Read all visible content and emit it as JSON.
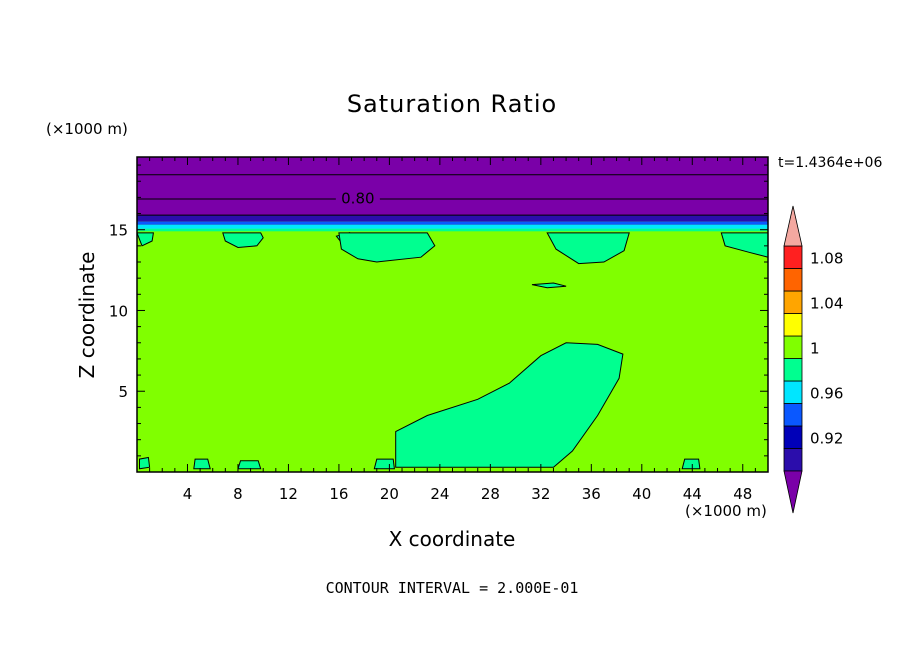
{
  "chart_data": {
    "type": "heatmap",
    "title": "Saturation Ratio",
    "xlabel": "X coordinate",
    "ylabel": "Z coordinate",
    "x_unit": "(×1000 m)",
    "y_unit": "(×1000 m)",
    "time_label": "t=1.4364e+06",
    "footer": "CONTOUR INTERVAL = 2.000E-01",
    "xlim": [
      0,
      50
    ],
    "ylim": [
      0,
      19.5
    ],
    "x_ticks": [
      4,
      8,
      12,
      16,
      20,
      24,
      28,
      32,
      36,
      40,
      44,
      48
    ],
    "y_ticks": [
      5,
      10,
      15
    ],
    "contour_labels": [
      {
        "text": "0.80",
        "x": 17.5,
        "z": 17.0
      }
    ],
    "colorbar": {
      "levels": [
        0.9,
        0.92,
        0.94,
        0.96,
        0.98,
        1.0,
        1.02,
        1.04,
        1.06,
        1.08,
        1.1
      ],
      "tick_labels": [
        "0.92",
        "0.96",
        "1",
        "1.04",
        "1.08"
      ],
      "tick_values": [
        0.92,
        0.96,
        1.0,
        1.04,
        1.08
      ],
      "colors": [
        "#7a00a8",
        "#2b0dab",
        "#0000b8",
        "#0a58ff",
        "#00e6ff",
        "#00ff90",
        "#80ff00",
        "#ffff00",
        "#ffa500",
        "#ff6400",
        "#ff2020"
      ],
      "under_color": "#7a00a8",
      "over_color": "#f4a8a0"
    },
    "field": {
      "background": "#80ff00",
      "bands": [
        {
          "z0": 15.9,
          "z1": 19.5,
          "color": "#7a00a8"
        },
        {
          "z0": 15.5,
          "z1": 15.9,
          "color": "#2b0dab"
        },
        {
          "z0": 15.3,
          "z1": 15.5,
          "color": "#0a58ff"
        },
        {
          "z0": 15.05,
          "z1": 15.3,
          "color": "#00e6ff"
        },
        {
          "z0": 14.9,
          "z1": 15.05,
          "color": "#00ff90"
        }
      ],
      "contour_lines_z": [
        16.9,
        18.4
      ],
      "regions": [
        {
          "color": "#00ff90",
          "points": [
            [
              20.5,
              0.3
            ],
            [
              20.5,
              2.5
            ],
            [
              23,
              3.5
            ],
            [
              27,
              4.5
            ],
            [
              29.5,
              5.5
            ],
            [
              32,
              7.2
            ],
            [
              34,
              8.0
            ],
            [
              36.5,
              7.9
            ],
            [
              38.5,
              7.3
            ],
            [
              38.2,
              5.8
            ],
            [
              36.5,
              3.5
            ],
            [
              34.5,
              1.3
            ],
            [
              33,
              0.3
            ]
          ]
        },
        {
          "color": "#00ff90",
          "points": [
            [
              6.8,
              14.8
            ],
            [
              7.0,
              14.3
            ],
            [
              8.0,
              13.9
            ],
            [
              9.5,
              14.0
            ],
            [
              10.0,
              14.5
            ],
            [
              9.8,
              14.8
            ]
          ]
        },
        {
          "color": "#00ff90",
          "points": [
            [
              15.8,
              14.6
            ],
            [
              16.2,
              14.2
            ],
            [
              16.5,
              14.5
            ],
            [
              16.8,
              14.8
            ]
          ]
        },
        {
          "color": "#00ff90",
          "points": [
            [
              16.0,
              14.8
            ],
            [
              16.2,
              13.8
            ],
            [
              17.5,
              13.2
            ],
            [
              19.0,
              13.0
            ],
            [
              22.5,
              13.3
            ],
            [
              23.6,
              14.0
            ],
            [
              23.0,
              14.8
            ]
          ]
        },
        {
          "color": "#00ff90",
          "points": [
            [
              32.5,
              14.8
            ],
            [
              33.2,
              13.8
            ],
            [
              35.0,
              12.9
            ],
            [
              37.0,
              13.0
            ],
            [
              38.6,
              13.7
            ],
            [
              39.0,
              14.8
            ]
          ]
        },
        {
          "color": "#00ff90",
          "points": [
            [
              46.3,
              14.8
            ],
            [
              46.6,
              14.0
            ],
            [
              48.5,
              13.6
            ],
            [
              50,
              13.3
            ],
            [
              50,
              14.8
            ]
          ]
        },
        {
          "color": "#00ff90",
          "points": [
            [
              0,
              14.8
            ],
            [
              0.4,
              14.0
            ],
            [
              1.2,
              14.3
            ],
            [
              1.3,
              14.8
            ]
          ]
        },
        {
          "color": "#00ff90",
          "points": [
            [
              31.3,
              11.6
            ],
            [
              32.5,
              11.4
            ],
            [
              34.0,
              11.5
            ],
            [
              33.0,
              11.7
            ]
          ]
        },
        {
          "color": "#00ff90",
          "points": [
            [
              0.2,
              0.2
            ],
            [
              0.2,
              0.8
            ],
            [
              0.9,
              0.9
            ],
            [
              1.0,
              0.3
            ]
          ]
        },
        {
          "color": "#00ff90",
          "points": [
            [
              4.5,
              0.2
            ],
            [
              4.6,
              0.8
            ],
            [
              5.6,
              0.8
            ],
            [
              5.8,
              0.2
            ]
          ]
        },
        {
          "color": "#00ff90",
          "points": [
            [
              8.0,
              0.2
            ],
            [
              8.2,
              0.7
            ],
            [
              9.6,
              0.7
            ],
            [
              9.8,
              0.2
            ]
          ]
        },
        {
          "color": "#00ff90",
          "points": [
            [
              18.8,
              0.2
            ],
            [
              19.0,
              0.8
            ],
            [
              20.3,
              0.8
            ],
            [
              20.4,
              0.2
            ]
          ]
        },
        {
          "color": "#00ff90",
          "points": [
            [
              43.2,
              0.2
            ],
            [
              43.4,
              0.8
            ],
            [
              44.5,
              0.8
            ],
            [
              44.6,
              0.2
            ]
          ]
        }
      ]
    }
  }
}
